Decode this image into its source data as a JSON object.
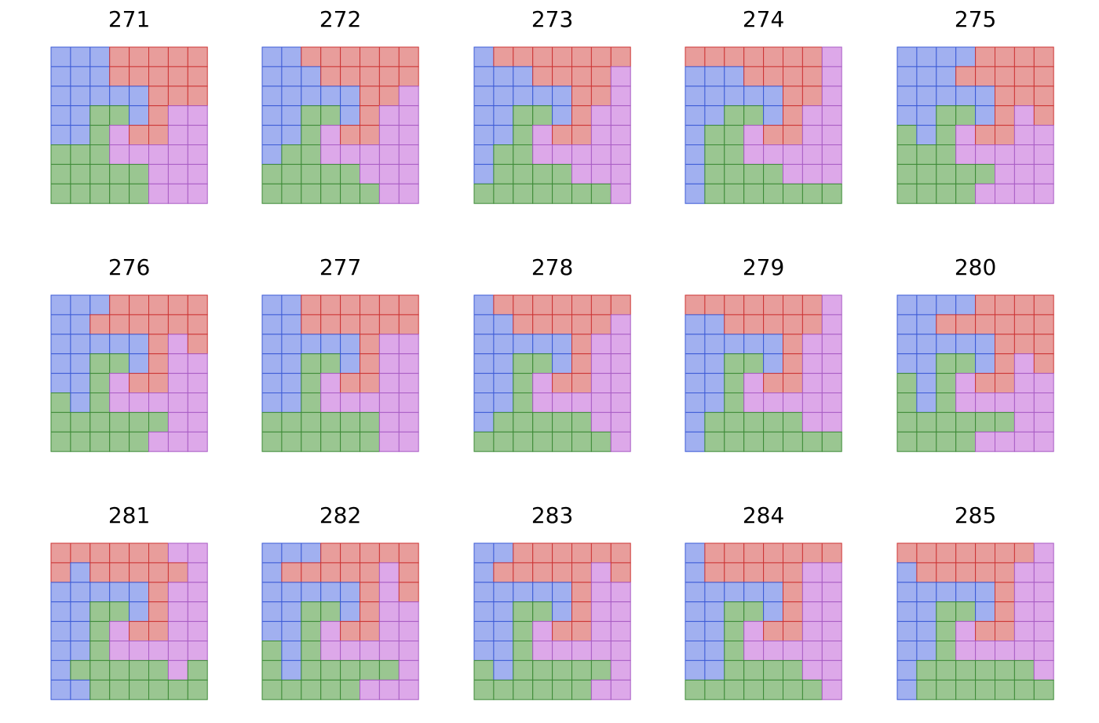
{
  "colors": {
    "B": {
      "fill": "#a1b0f0",
      "stroke": "#3d5bd6"
    },
    "R": {
      "fill": "#e89d9b",
      "stroke": "#cc3535"
    },
    "G": {
      "fill": "#9ac691",
      "stroke": "#3c8a36"
    },
    "P": {
      "fill": "#dda8e9",
      "stroke": "#a95cc4"
    }
  },
  "puzzles": [
    {
      "title": "271",
      "grid": [
        "BBBRRRRR",
        "BBBRRRRR",
        "BBBBBRRR",
        "BBGGBRPP",
        "BBGPRRPP",
        "GGGPPPPP",
        "GGGGGPPP",
        "GGGGGPPP"
      ]
    },
    {
      "title": "272",
      "grid": [
        "BBRRRRRR",
        "BBBRRRRR",
        "BBBBBRRP",
        "BBGGBRPP",
        "BBGPRRPP",
        "BGGPPPPP",
        "GGGGGPPP",
        "GGGGGGPP"
      ]
    },
    {
      "title": "273",
      "grid": [
        "BRRRRRRR",
        "BBBRRRRP",
        "BBBBBRRP",
        "BBGGBRPP",
        "BBGPRRPP",
        "BGGPPPPP",
        "BGGGGPPP",
        "GGGGGGGP"
      ]
    },
    {
      "title": "274",
      "grid": [
        "RRRRRRRP",
        "BBBRRRRP",
        "BBBBBRRP",
        "BBGGBRPP",
        "BGGPRRPP",
        "BGGPPPPP",
        "BGGGGPPP",
        "BGGGGGGG"
      ]
    },
    {
      "title": "275",
      "grid": [
        "BBBBRRRR",
        "BBBRRRRR",
        "BBBBBRRR",
        "BBGGBRPR",
        "GBGPRRPP",
        "GGGPPPPP",
        "GGGGGPPP",
        "GGGGPPPP"
      ]
    },
    {
      "title": "276",
      "grid": [
        "BBBRRRRR",
        "BBRRRRRR",
        "BBBBBRPR",
        "BBGGBRPP",
        "BBGPRRPP",
        "GBGPPPPP",
        "GGGGGGPP",
        "GGGGGPPP"
      ]
    },
    {
      "title": "277",
      "grid": [
        "BBRRRRRR",
        "BBRRRRRR",
        "BBBBBRPP",
        "BBGGBRPP",
        "BBGPRRPP",
        "BBGPPPPP",
        "GGGGGGPP",
        "GGGGGGPP"
      ]
    },
    {
      "title": "278",
      "grid": [
        "BRRRRRRR",
        "BBRRRRRP",
        "BBBBBRPP",
        "BBGGBRPP",
        "BBGPRRPP",
        "BBGPPPPP",
        "BGGGGGPP",
        "GGGGGGGP"
      ]
    },
    {
      "title": "279",
      "grid": [
        "RRRRRRRP",
        "BBRRRRRP",
        "BBBBBRPP",
        "BBGGBRPP",
        "BBGPRRPP",
        "BBGPPPPP",
        "BGGGGGPP",
        "BGGGGGGG"
      ]
    },
    {
      "title": "280",
      "grid": [
        "BBBBRRRR",
        "BBRRRRRR",
        "BBBBBRRR",
        "BBGGBRPR",
        "GBGPRRPP",
        "GBGPPPPP",
        "GGGGGGPP",
        "GGGGPPPP"
      ]
    },
    {
      "title": "281",
      "grid": [
        "RRRRRRPP",
        "RBRRRRRP",
        "BBBBBRPP",
        "BBGGBRPP",
        "BBGPRRPP",
        "BBGPPPPP",
        "BGGGGGPG",
        "BBGGGGGG"
      ]
    },
    {
      "title": "282",
      "grid": [
        "BBBRRRRR",
        "BRRRRRPR",
        "BBBBBRPR",
        "BBGGBRPP",
        "BBGPRRPP",
        "GBGPPPPP",
        "GBGGGGGP",
        "GGGGGPPP"
      ]
    },
    {
      "title": "283",
      "grid": [
        "BBRRRRRR",
        "BRRRRRPR",
        "BBBBBRPP",
        "BBGGBRPP",
        "BBGPRRPP",
        "BBGPPPPP",
        "GBGGGGGP",
        "GGGGGGPP"
      ]
    },
    {
      "title": "284",
      "grid": [
        "BRRRRRRR",
        "BRRRRRPP",
        "BBBBBRPP",
        "BBGGBRPP",
        "BBGPRRPP",
        "BBGPPPPP",
        "BBGGGGPP",
        "GGGGGGGP"
      ]
    },
    {
      "title": "285",
      "grid": [
        "RRRRRRRP",
        "BRRRRRPP",
        "BBBBBRPP",
        "BBGGBRPP",
        "BBGPRRPP",
        "BBGPPPPP",
        "BGGGGGGP",
        "BGGGGGGG"
      ]
    }
  ]
}
